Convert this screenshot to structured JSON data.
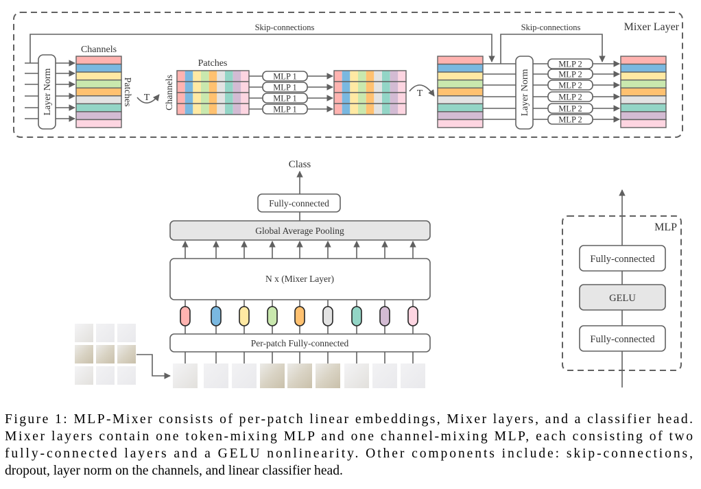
{
  "colors": {
    "stroke": "#606060",
    "rows": [
      "#FFB3B0",
      "#7AB8E0",
      "#FFE9A3",
      "#C9E8AE",
      "#FFC170",
      "#E3E3E3",
      "#93D5C6",
      "#D3BBD3",
      "#FDD5E1"
    ],
    "gray_box": "#E6E6E6"
  },
  "mixer_layer": {
    "title": "Mixer Layer",
    "skip_label_1": "Skip-connections",
    "skip_label_2": "Skip-connections",
    "layer_norm_1": "Layer Norm",
    "layer_norm_2": "Layer Norm",
    "channels_label": "Channels",
    "patches_side_label": "Patches",
    "patches_label": "Patches",
    "channels_side_label": "Channels",
    "transpose_1": "T",
    "transpose_2": "T",
    "mlp1_labels": [
      "MLP 1",
      "MLP 1",
      "MLP 1",
      "MLP 1"
    ],
    "mlp2_labels": [
      "MLP 2",
      "MLP 2",
      "MLP 2",
      "MLP 2",
      "MLP 2",
      "MLP 2"
    ]
  },
  "architecture": {
    "output_label": "Class",
    "head": "Fully-connected",
    "pooling": "Global Average Pooling",
    "mixer_stack": "N x (Mixer Layer)",
    "embedding": "Per-patch Fully-connected"
  },
  "mlp_block": {
    "title": "MLP",
    "layers": [
      "Fully-connected",
      "GELU",
      "Fully-connected"
    ]
  },
  "caption": [
    "Figure 1: MLP-Mixer consists of per-patch linear embeddings, Mixer layers, and a classifier head.",
    "Mixer layers contain one token-mixing MLP and one channel-mixing MLP, each consisting of two",
    "fully-connected layers and a GELU nonlinearity.  Other components include: skip-connections,",
    "dropout, layer norm on the channels, and linear classifier head."
  ]
}
